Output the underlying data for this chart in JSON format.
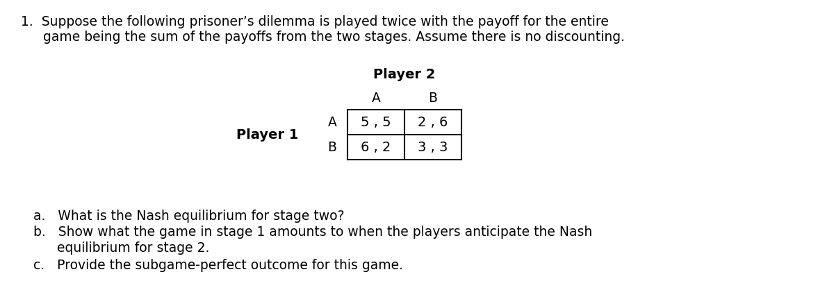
{
  "background_color": "#ffffff",
  "figsize": [
    12.0,
    4.28
  ],
  "dpi": 100,
  "main_text_line1": "1.  Suppose the following prisoner’s dilemma is played twice with the payoff for the entire",
  "main_text_line2": "game being the sum of the payoffs from the two stages. Assume there is no discounting.",
  "player2_label": "Player 2",
  "player1_label": "Player 1",
  "col_labels": [
    "A",
    "B"
  ],
  "row_labels": [
    "A",
    "B"
  ],
  "cell_values": [
    [
      "5 , 5",
      "2 , 6"
    ],
    [
      "6 , 2",
      "3 , 3"
    ]
  ],
  "question_a": "a.   What is the Nash equilibrium for stage two?",
  "question_b_line1": "b.   Show what the game in stage 1 amounts to when the players anticipate the Nash",
  "question_b_line2": "equilibrium for stage 2.",
  "question_c": "c.   Provide the subgame-perfect outcome for this game.",
  "font_size_main": 13.5,
  "font_size_table": 14,
  "font_size_labels": 13.5,
  "font_size_player": 14
}
